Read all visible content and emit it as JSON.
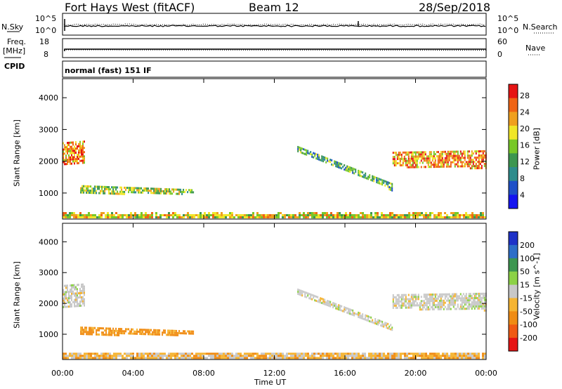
{
  "header": {
    "title": "Fort Hays West (fitACF)",
    "beam": "Beam 12",
    "date": "28/Sep/2018"
  },
  "top_panels": {
    "nsky_label": "N.Sky",
    "nsky_ticks": [
      "10^5",
      "10^0"
    ],
    "nsearch_label": "N.Search",
    "nsearch_ticks": [
      "10^5",
      "10^0"
    ],
    "freq_label": "Freq.",
    "freq_unit": "[MHz]",
    "freq_ticks": [
      "18",
      "8"
    ],
    "nave_label": "Nave",
    "nave_ticks": [
      "60",
      "0"
    ],
    "cpid_label": "CPID",
    "cpid_text": "normal (fast) 151 IF"
  },
  "colors": {
    "power": [
      "#1414f0",
      "#1e50c8",
      "#2d8c8c",
      "#3c9650",
      "#78c828",
      "#f0e628",
      "#f0a01e",
      "#f06414",
      "#e61414"
    ],
    "velocity": [
      "#1e32c8",
      "#2d6ec8",
      "#3c9650",
      "#8cd246",
      "#c8c8c8",
      "#f5b432",
      "#f08c14",
      "#f05a14",
      "#e61414"
    ]
  },
  "chart_data": [
    {
      "type": "heatmap",
      "name": "Power",
      "ylabel": "Slant Range [km]",
      "y_ticks": [
        1000,
        2000,
        3000,
        4000
      ],
      "ylim": [
        180,
        4600
      ],
      "x_ticks": [
        "00:00",
        "04:00",
        "08:00",
        "12:00",
        "16:00",
        "20:00",
        "00:00"
      ],
      "xlim_hours": [
        0,
        24
      ],
      "colorbar": {
        "label": "Power [dB]",
        "ticks": [
          "4",
          "8",
          "12",
          "16",
          "20",
          "24",
          "28"
        ],
        "range": [
          0,
          30
        ]
      },
      "features": [
        {
          "t": [
            0.0,
            1.2
          ],
          "r_start": [
            1900,
            2600
          ],
          "r_end": [
            1950,
            2650
          ],
          "v": 22
        },
        {
          "t": [
            1.0,
            7.4
          ],
          "r_start": [
            1000,
            1250
          ],
          "r_end": [
            1000,
            1120
          ],
          "v": 16
        },
        {
          "t": [
            13.3,
            18.7
          ],
          "r_start": [
            2300,
            2480
          ],
          "r_end": [
            1100,
            1300
          ],
          "v": 12
        },
        {
          "t": [
            18.7,
            24.0
          ],
          "r_start": [
            1850,
            2300
          ],
          "r_end": [
            1800,
            2350
          ],
          "v": 22
        },
        {
          "t": [
            0.0,
            24.0
          ],
          "r_start": [
            220,
            400
          ],
          "r_end": [
            220,
            400
          ],
          "v": 18
        }
      ]
    },
    {
      "type": "heatmap",
      "name": "Velocity",
      "ylabel": "Slant Range [km]",
      "y_ticks": [
        1000,
        2000,
        3000,
        4000
      ],
      "ylim": [
        180,
        4600
      ],
      "x_ticks": [
        "00:00",
        "04:00",
        "08:00",
        "12:00",
        "16:00",
        "20:00",
        "00:00"
      ],
      "xlim_hours": [
        0,
        24
      ],
      "xlabel": "Time UT",
      "colorbar": {
        "label": "Velocity [m s^-1]",
        "ticks": [
          "200",
          "100",
          "50",
          "15",
          "-15",
          "-50",
          "-100",
          "-200"
        ]
      },
      "features": [
        {
          "t": [
            0.0,
            1.2
          ],
          "r_start": [
            1900,
            2600
          ],
          "r_end": [
            1950,
            2650
          ],
          "v": 0
        },
        {
          "t": [
            1.0,
            7.4
          ],
          "r_start": [
            1000,
            1250
          ],
          "r_end": [
            1000,
            1120
          ],
          "v": -60
        },
        {
          "t": [
            13.3,
            18.7
          ],
          "r_start": [
            2300,
            2480
          ],
          "r_end": [
            1100,
            1300
          ],
          "v": 0
        },
        {
          "t": [
            18.7,
            24.0
          ],
          "r_start": [
            1850,
            2300
          ],
          "r_end": [
            1800,
            2350
          ],
          "v": 0
        },
        {
          "t": [
            0.0,
            24.0
          ],
          "r_start": [
            220,
            400
          ],
          "r_end": [
            220,
            400
          ],
          "v": -30
        }
      ]
    }
  ]
}
